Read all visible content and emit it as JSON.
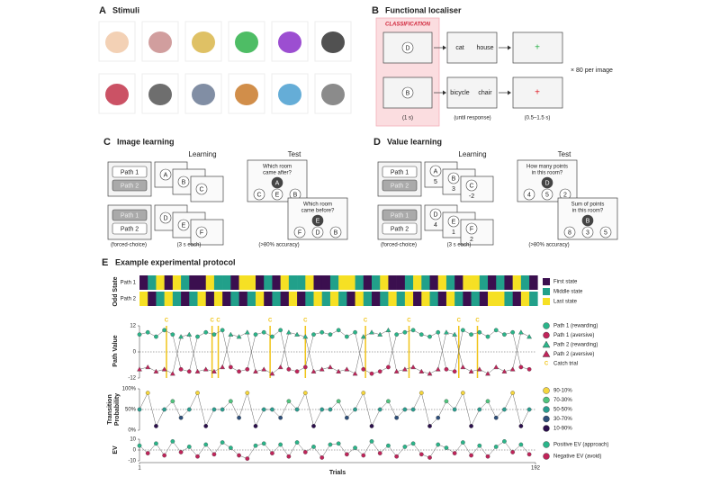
{
  "panels": {
    "A": {
      "letter": "A",
      "title": "Stimuli"
    },
    "B": {
      "letter": "B",
      "title": "Functional localiser",
      "tag": "CLASSIFICATION",
      "cue_letters": [
        "D",
        "B"
      ],
      "word_pairs": [
        [
          "cat",
          "house"
        ],
        [
          "bicycle",
          "chair"
        ]
      ],
      "fixation": "+",
      "repeat": "× 80 per image",
      "durations": [
        "(1 s)",
        "(until response)",
        "(0.5–1.5 s)"
      ]
    },
    "C": {
      "letter": "C",
      "title": "Image learning",
      "learning": "Learning",
      "test": "Test",
      "choices": [
        "Path 1",
        "Path 2"
      ],
      "sequence1": [
        "A",
        "B",
        "C"
      ],
      "sequence2": [
        "D",
        "E",
        "F"
      ],
      "q1": [
        "Which room",
        "came after?"
      ],
      "q1_cue": "A",
      "q1_options": [
        "C",
        "E",
        "B"
      ],
      "q2": [
        "Which room",
        "came before?"
      ],
      "q2_cue": "E",
      "q2_options": [
        "F",
        "D",
        "B"
      ],
      "captions": [
        "(forced-choice)",
        "(3 s each)",
        "(>80% accuracy)"
      ]
    },
    "D": {
      "letter": "D",
      "title": "Value learning",
      "learning": "Learning",
      "test": "Test",
      "choices": [
        "Path 1",
        "Path 2"
      ],
      "sequence1": [
        "A",
        "B",
        "C"
      ],
      "sequence2": [
        "D",
        "E",
        "F"
      ],
      "values1": [
        5,
        3,
        -2
      ],
      "values2": [
        4,
        1,
        2
      ],
      "q1": [
        "How many points",
        "in this room?"
      ],
      "q1_cue": "D",
      "q1_options": [
        4,
        5,
        2
      ],
      "q2": [
        "Sum of points",
        "in this room?"
      ],
      "q2_cue": "B",
      "q2_options": [
        8,
        3,
        5
      ],
      "captions": [
        "(forced-choice)",
        "(3 s each)",
        "(>80% accuracy)"
      ]
    },
    "E": {
      "letter": "E",
      "title": "Example experimental protocol",
      "x_label": "Trials",
      "x": [
        1,
        5,
        9,
        13,
        17,
        21,
        25,
        29,
        33,
        37,
        41,
        45,
        49,
        53,
        57,
        61,
        65,
        69,
        73,
        77,
        81,
        85,
        89,
        93,
        97,
        101,
        105,
        109,
        113,
        117,
        121,
        125,
        129,
        133,
        137,
        141,
        145,
        149,
        153,
        157,
        161,
        165,
        169,
        173,
        177,
        181,
        185,
        189
      ],
      "xlim": [
        1,
        192
      ],
      "xticks": [
        1,
        192
      ],
      "odd_state": {
        "y_label": "Odd State",
        "rows": [
          "Path 1",
          "Path 2"
        ],
        "legend": [
          {
            "label": "First state",
            "color": "#3b0f4f"
          },
          {
            "label": "Middle state",
            "color": "#21a08a"
          },
          {
            "label": "Last state",
            "color": "#f6e024"
          }
        ],
        "states": [
          [
            0,
            1,
            2,
            0,
            2,
            1,
            0,
            0,
            2,
            1,
            1,
            0,
            2,
            2,
            0,
            1,
            0,
            2,
            1,
            1,
            2,
            0,
            0,
            1,
            2,
            2,
            1,
            0,
            1,
            2,
            0,
            0,
            1,
            2,
            1,
            0,
            2,
            1,
            0,
            2,
            2,
            1,
            0,
            1,
            0,
            2,
            1,
            0
          ],
          [
            2,
            0,
            1,
            2,
            1,
            0,
            1,
            2,
            0,
            2,
            0,
            1,
            0,
            1,
            2,
            0,
            1,
            0,
            2,
            0,
            1,
            2,
            1,
            2,
            1,
            0,
            2,
            1,
            0,
            1,
            2,
            1,
            2,
            0,
            2,
            1,
            0,
            2,
            1,
            0,
            1,
            0,
            2,
            2,
            1,
            0,
            2,
            1
          ]
        ]
      },
      "path_value": {
        "y_label": "Path Value",
        "ylim": [
          -12,
          12
        ],
        "yticks": [
          12,
          0,
          -12
        ],
        "legend": [
          {
            "label": "Path 1 (rewarding)",
            "color": "#2bb58a",
            "marker": "circle"
          },
          {
            "label": "Path 1 (aversive)",
            "color": "#c0245a",
            "marker": "circle"
          },
          {
            "label": "Path 2 (rewarding)",
            "color": "#2bb58a",
            "marker": "triangle"
          },
          {
            "label": "Path 2 (aversive)",
            "color": "#c0245a",
            "marker": "triangle"
          },
          {
            "label": "Catch trial",
            "color": "#f0c419",
            "symbol": "C"
          }
        ],
        "series": [
          {
            "name": "Path 1",
            "values": [
              8,
              9,
              7,
              10,
              8,
              -8,
              -9,
              7,
              9,
              8,
              10,
              -7,
              -9,
              -8,
              8,
              9,
              7,
              10,
              -8,
              -9,
              -7,
              8,
              9,
              8,
              10,
              7,
              9,
              -8,
              -10,
              -9,
              -7,
              8,
              9,
              10,
              8,
              7,
              9,
              -8,
              -9,
              10,
              8,
              9,
              7,
              10,
              8,
              9,
              -7,
              -8
            ]
          },
          {
            "name": "Path 2",
            "values": [
              -8,
              -7,
              -9,
              -8,
              -10,
              7,
              8,
              -9,
              -8,
              -9,
              -7,
              8,
              7,
              9,
              -9,
              -8,
              -10,
              -7,
              9,
              8,
              7,
              -9,
              -8,
              -7,
              -9,
              -8,
              -10,
              7,
              9,
              8,
              10,
              -9,
              -8,
              -7,
              -9,
              -10,
              -8,
              9,
              8,
              -7,
              -9,
              -8,
              -10,
              -7,
              -9,
              -8,
              9,
              7
            ]
          }
        ],
        "catch_trials": [
          14,
          36,
          39,
          64,
          81,
          110,
          131,
          155,
          164
        ]
      },
      "transition": {
        "y_label": [
          "Transition",
          "Probability"
        ],
        "ylim": [
          0,
          100
        ],
        "yticks": [
          {
            "value": 0,
            "label": "0%"
          },
          {
            "value": 50,
            "label": "50%"
          },
          {
            "value": 100,
            "label": "100%"
          }
        ],
        "legend": [
          {
            "label": "90-10%",
            "value": 90,
            "color": "#f5d63d"
          },
          {
            "label": "70-30%",
            "value": 70,
            "color": "#52c47f"
          },
          {
            "label": "50-50%",
            "value": 50,
            "color": "#2a9d8f"
          },
          {
            "label": "30-70%",
            "value": 30,
            "color": "#2e4f7a"
          },
          {
            "label": "10-90%",
            "value": 10,
            "color": "#2b0f4c"
          }
        ],
        "values": [
          50,
          90,
          10,
          50,
          70,
          30,
          50,
          90,
          10,
          50,
          50,
          70,
          30,
          90,
          10,
          50,
          50,
          30,
          70,
          50,
          90,
          10,
          50,
          50,
          70,
          30,
          50,
          90,
          10,
          50,
          70,
          30,
          50,
          50,
          90,
          10,
          30,
          70,
          50,
          90,
          10,
          50,
          70,
          30,
          50,
          90,
          10,
          50
        ]
      },
      "ev": {
        "y_label": "EV",
        "ylim": [
          -10,
          10
        ],
        "yticks": [
          10,
          0,
          -10
        ],
        "legend": [
          {
            "label": "Positive EV (approach)",
            "color": "#2bb58a"
          },
          {
            "label": "Negative EV (avoid)",
            "color": "#c0245a"
          }
        ],
        "values": [
          4,
          -3,
          6,
          -5,
          8,
          -2,
          3,
          -6,
          5,
          -4,
          7,
          2,
          -5,
          -8,
          4,
          6,
          -3,
          5,
          -6,
          7,
          -2,
          3,
          -7,
          5,
          6,
          -4,
          2,
          -5,
          8,
          -3,
          4,
          -6,
          3,
          6,
          -4,
          -7,
          5,
          2,
          -3,
          7,
          -5,
          4,
          -6,
          3,
          8,
          -2,
          5,
          -4
        ]
      }
    }
  }
}
